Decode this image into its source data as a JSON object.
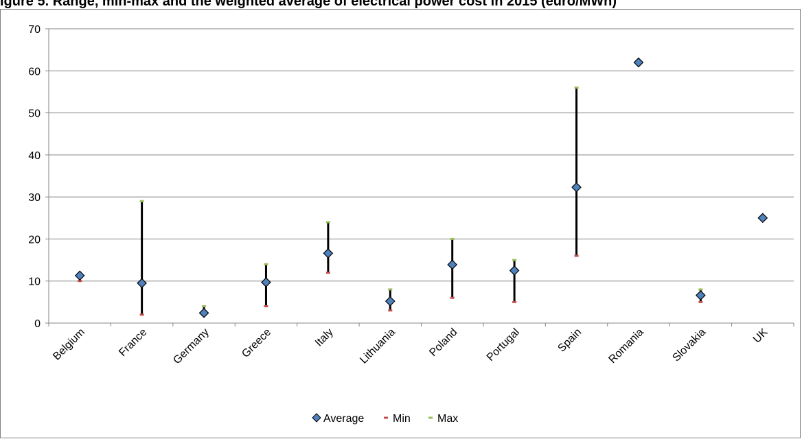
{
  "title": "igure 5. Range, min-max and the weighted average of electrical power cost in 2015 (euro/MWh)",
  "chart_data": {
    "type": "scatter",
    "categories": [
      "Belgium",
      "France",
      "Germany",
      "Greece",
      "Italy",
      "Lithuania",
      "Poland",
      "Portugal",
      "Spain",
      "Romania",
      "Slovakia",
      "UK"
    ],
    "series": [
      {
        "name": "Average",
        "values": [
          11.3,
          9.5,
          2.4,
          9.7,
          16.6,
          5.2,
          13.9,
          12.5,
          32.3,
          62,
          6.6,
          25
        ],
        "color": "#4f81bd",
        "marker": "diamond"
      },
      {
        "name": "Min",
        "values": [
          10,
          2,
          2,
          4,
          12,
          3,
          6,
          5,
          16,
          null,
          5,
          null
        ],
        "color": "#c0504d",
        "marker": "dash"
      },
      {
        "name": "Max",
        "values": [
          12,
          29,
          4,
          14,
          24,
          8,
          20,
          15,
          56,
          null,
          8,
          null
        ],
        "color": "#9bbb59",
        "marker": "dash"
      }
    ],
    "ylim": [
      0,
      70
    ],
    "yticks": [
      0,
      10,
      20,
      30,
      40,
      50,
      60,
      70
    ],
    "grid": true,
    "legend": "bottom",
    "range_bars": true
  }
}
